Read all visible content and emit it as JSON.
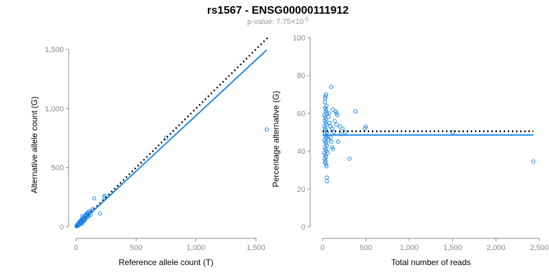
{
  "title": "rs1567 - ENSG00000111912",
  "subtitle": {
    "prefix": "p-value: 7.75×10",
    "exponent": "-5"
  },
  "colors": {
    "points": "#1e88f0",
    "fit": "#1e88f0",
    "reference": "#000000",
    "axis": "#888888"
  },
  "chart_data": [
    {
      "type": "scatter",
      "xlabel": "Reference allele count (T)",
      "ylabel": "Alternative allele count (G)",
      "xlim": [
        0,
        1600
      ],
      "ylim": [
        0,
        1550
      ],
      "xticks": [
        0,
        500,
        1000,
        1500
      ],
      "xtick_labels": [
        "0",
        "500",
        "1,000",
        "1,500"
      ],
      "yticks": [
        0,
        500,
        1000,
        1500
      ],
      "ytick_labels": [
        "0",
        "500",
        "1,000",
        "1,500"
      ],
      "reference_line": {
        "style": "dotted",
        "slope": 1,
        "intercept": 0,
        "x": [
          0,
          1600
        ]
      },
      "fit_line": {
        "style": "solid",
        "slope": 0.94,
        "intercept": 0,
        "x": [
          0,
          1590
        ]
      },
      "points": [
        [
          1590,
          822
        ],
        [
          750,
          752
        ],
        [
          240,
          262
        ],
        [
          235,
          250
        ],
        [
          200,
          112
        ],
        [
          150,
          240
        ],
        [
          140,
          150
        ],
        [
          130,
          135
        ],
        [
          120,
          100
        ],
        [
          110,
          130
        ],
        [
          100,
          90
        ],
        [
          95,
          115
        ],
        [
          90,
          80
        ],
        [
          85,
          110
        ],
        [
          80,
          70
        ],
        [
          75,
          95
        ],
        [
          70,
          60
        ],
        [
          65,
          85
        ],
        [
          60,
          45
        ],
        [
          55,
          70
        ],
        [
          50,
          90
        ],
        [
          50,
          40
        ],
        [
          45,
          60
        ],
        [
          40,
          35
        ],
        [
          40,
          50
        ],
        [
          35,
          30
        ],
        [
          30,
          45
        ],
        [
          30,
          25
        ],
        [
          25,
          20
        ],
        [
          25,
          35
        ],
        [
          20,
          15
        ],
        [
          20,
          28
        ],
        [
          15,
          20
        ],
        [
          15,
          10
        ],
        [
          10,
          12
        ],
        [
          10,
          8
        ],
        [
          8,
          5
        ],
        [
          5,
          6
        ],
        [
          12,
          18
        ],
        [
          18,
          22
        ],
        [
          22,
          30
        ],
        [
          28,
          20
        ],
        [
          32,
          40
        ],
        [
          38,
          28
        ],
        [
          42,
          55
        ],
        [
          48,
          38
        ],
        [
          52,
          58
        ],
        [
          58,
          48
        ],
        [
          62,
          75
        ],
        [
          68,
          52
        ],
        [
          72,
          66
        ],
        [
          78,
          88
        ],
        [
          88,
          100
        ],
        [
          98,
          120
        ],
        [
          105,
          95
        ],
        [
          45,
          25
        ],
        [
          6,
          15
        ],
        [
          3,
          4
        ],
        [
          14,
          14
        ],
        [
          24,
          16
        ]
      ]
    },
    {
      "type": "scatter",
      "xlabel": "Total number of reads",
      "ylabel": "Percentage alternative (G)",
      "xlim": [
        0,
        2500
      ],
      "ylim": [
        0,
        100
      ],
      "xticks": [
        0,
        500,
        1000,
        1500,
        2000,
        2500
      ],
      "xtick_labels": [
        "0",
        "500",
        "1,000",
        "1,500",
        "2,000",
        "2,500"
      ],
      "yticks": [
        0,
        20,
        40,
        60,
        80,
        100
      ],
      "ytick_labels": [
        "0",
        "20",
        "40",
        "60",
        "80",
        "100"
      ],
      "reference_line": {
        "style": "dotted",
        "y": 50.5,
        "x": [
          0,
          2430
        ]
      },
      "fit_line": {
        "style": "solid",
        "y": 48.5,
        "x": [
          0,
          2430
        ]
      },
      "points": [
        [
          2430,
          34.5
        ],
        [
          1500,
          50
        ],
        [
          500,
          53
        ],
        [
          490,
          52
        ],
        [
          380,
          61
        ],
        [
          310,
          36
        ],
        [
          100,
          74
        ],
        [
          40,
          70
        ],
        [
          35,
          69
        ],
        [
          30,
          68
        ],
        [
          25,
          66
        ],
        [
          45,
          64
        ],
        [
          30,
          63
        ],
        [
          40,
          62
        ],
        [
          35,
          61
        ],
        [
          50,
          60
        ],
        [
          20,
          59
        ],
        [
          30,
          58
        ],
        [
          40,
          57
        ],
        [
          25,
          56
        ],
        [
          35,
          55
        ],
        [
          45,
          54
        ],
        [
          20,
          53
        ],
        [
          30,
          52
        ],
        [
          40,
          51
        ],
        [
          50,
          50
        ],
        [
          25,
          49
        ],
        [
          35,
          48
        ],
        [
          45,
          47
        ],
        [
          20,
          46
        ],
        [
          30,
          45
        ],
        [
          40,
          44
        ],
        [
          50,
          43
        ],
        [
          25,
          42
        ],
        [
          35,
          41
        ],
        [
          45,
          40
        ],
        [
          20,
          39
        ],
        [
          30,
          38
        ],
        [
          40,
          37
        ],
        [
          25,
          36
        ],
        [
          35,
          35
        ],
        [
          30,
          34
        ],
        [
          40,
          33
        ],
        [
          45,
          32
        ],
        [
          50,
          26
        ],
        [
          50,
          24
        ],
        [
          150,
          61
        ],
        [
          160,
          60
        ],
        [
          120,
          62
        ],
        [
          80,
          55
        ],
        [
          90,
          53
        ],
        [
          110,
          52
        ],
        [
          130,
          50
        ],
        [
          140,
          56
        ],
        [
          160,
          54
        ],
        [
          170,
          59
        ],
        [
          200,
          53
        ],
        [
          230,
          52
        ],
        [
          260,
          50
        ],
        [
          180,
          45
        ],
        [
          110,
          42
        ],
        [
          120,
          41
        ],
        [
          60,
          48
        ],
        [
          70,
          46
        ],
        [
          60,
          39
        ],
        [
          70,
          58
        ],
        [
          75,
          60
        ],
        [
          210,
          49
        ],
        [
          100,
          45
        ],
        [
          90,
          47
        ]
      ]
    }
  ]
}
